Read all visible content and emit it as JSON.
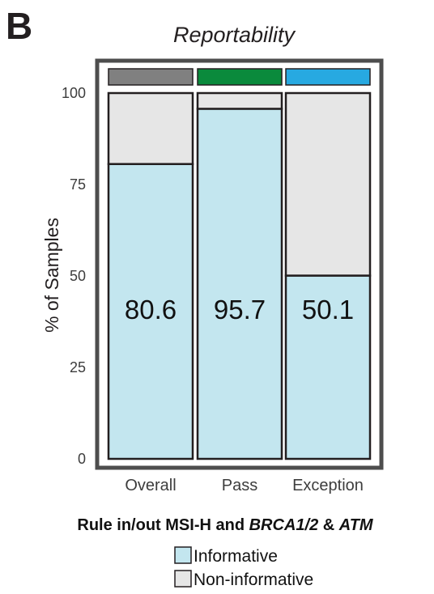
{
  "panel_label": "B",
  "caption": {
    "part1": "Rule in/out MSI-H and ",
    "part2": "BRCA1/2",
    "part3": " & ",
    "part4": "ATM"
  },
  "chart_data": {
    "type": "bar",
    "stacked": true,
    "title": "Reportability",
    "xlabel": "",
    "ylabel": "% of Samples",
    "ylim": [
      0,
      100
    ],
    "yticks": [
      0,
      25,
      50,
      75,
      100
    ],
    "categories": [
      "Overall",
      "Pass",
      "Exception"
    ],
    "category_colors": [
      "#808080",
      "#0a8a3c",
      "#27a9e1"
    ],
    "series": [
      {
        "name": "Informative",
        "color": "#c3e6ef",
        "values": [
          80.6,
          95.7,
          50.1
        ],
        "data_labels": [
          "80.6",
          "95.7",
          "50.1"
        ]
      },
      {
        "name": "Non-informative",
        "color": "#e6e6e6",
        "values": [
          19.4,
          4.3,
          49.9
        ]
      }
    ],
    "legend_position": "bottom",
    "grid": false
  }
}
